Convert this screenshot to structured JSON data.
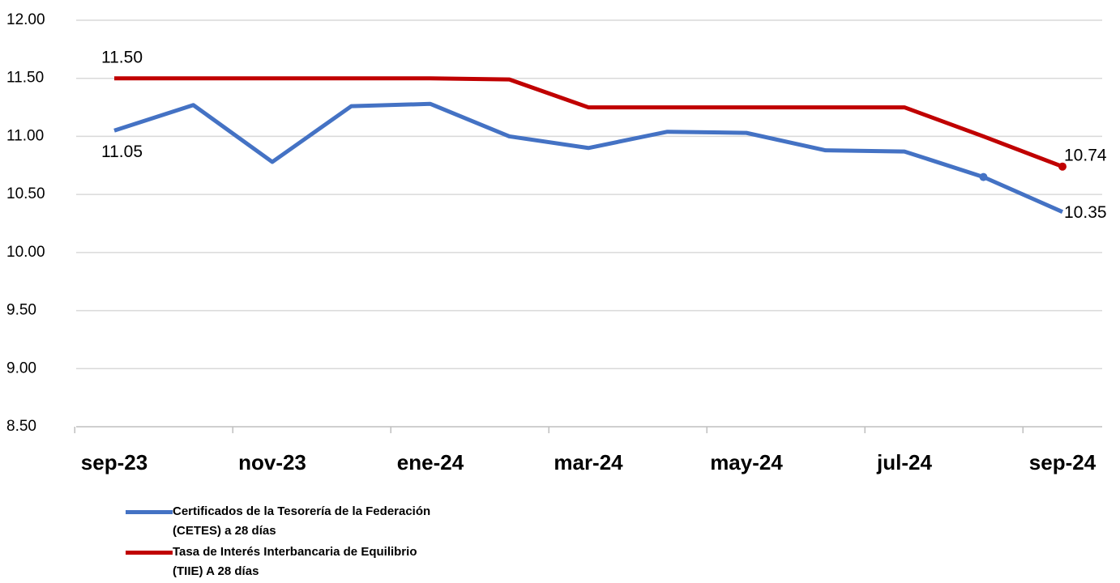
{
  "chart_data": {
    "type": "line",
    "categories": [
      "sep-23",
      null,
      "nov-23",
      null,
      "ene-24",
      null,
      "mar-24",
      null,
      "may-24",
      null,
      "jul-24",
      null,
      "sep-24"
    ],
    "series": [
      {
        "name": "Certificados de la Tesorería de la Federación (CETES) a 28 días",
        "color": "#4472c4",
        "values": [
          11.05,
          11.27,
          10.78,
          11.26,
          11.28,
          11.0,
          10.9,
          11.04,
          11.03,
          10.88,
          10.87,
          10.65,
          10.35
        ],
        "value_labels": [
          "11.05",
          null,
          null,
          null,
          null,
          null,
          null,
          null,
          null,
          null,
          null,
          null,
          "10.35"
        ]
      },
      {
        "name": "Tasa de Interés Interbancaria de Equilibrio (TIIE) A 28 días",
        "color": "#c00000",
        "values": [
          11.5,
          11.5,
          11.5,
          11.5,
          11.5,
          11.49,
          11.25,
          11.25,
          11.25,
          11.25,
          11.25,
          11.0,
          10.74
        ],
        "value_labels": [
          "11.50",
          null,
          null,
          null,
          null,
          null,
          null,
          null,
          null,
          null,
          null,
          null,
          "10.74"
        ]
      }
    ],
    "ylim": [
      8.5,
      12.0
    ],
    "yticks": [
      {
        "value": 8.5,
        "label": "8.50"
      },
      {
        "value": 9.0,
        "label": "9.00"
      },
      {
        "value": 9.5,
        "label": "9.50"
      },
      {
        "value": 10.0,
        "label": "10.00"
      },
      {
        "value": 10.5,
        "label": "10.50"
      },
      {
        "value": 11.0,
        "label": "11.00"
      },
      {
        "value": 11.5,
        "label": "11.50"
      },
      {
        "value": 12.0,
        "label": "12.00"
      }
    ],
    "grid": true
  }
}
